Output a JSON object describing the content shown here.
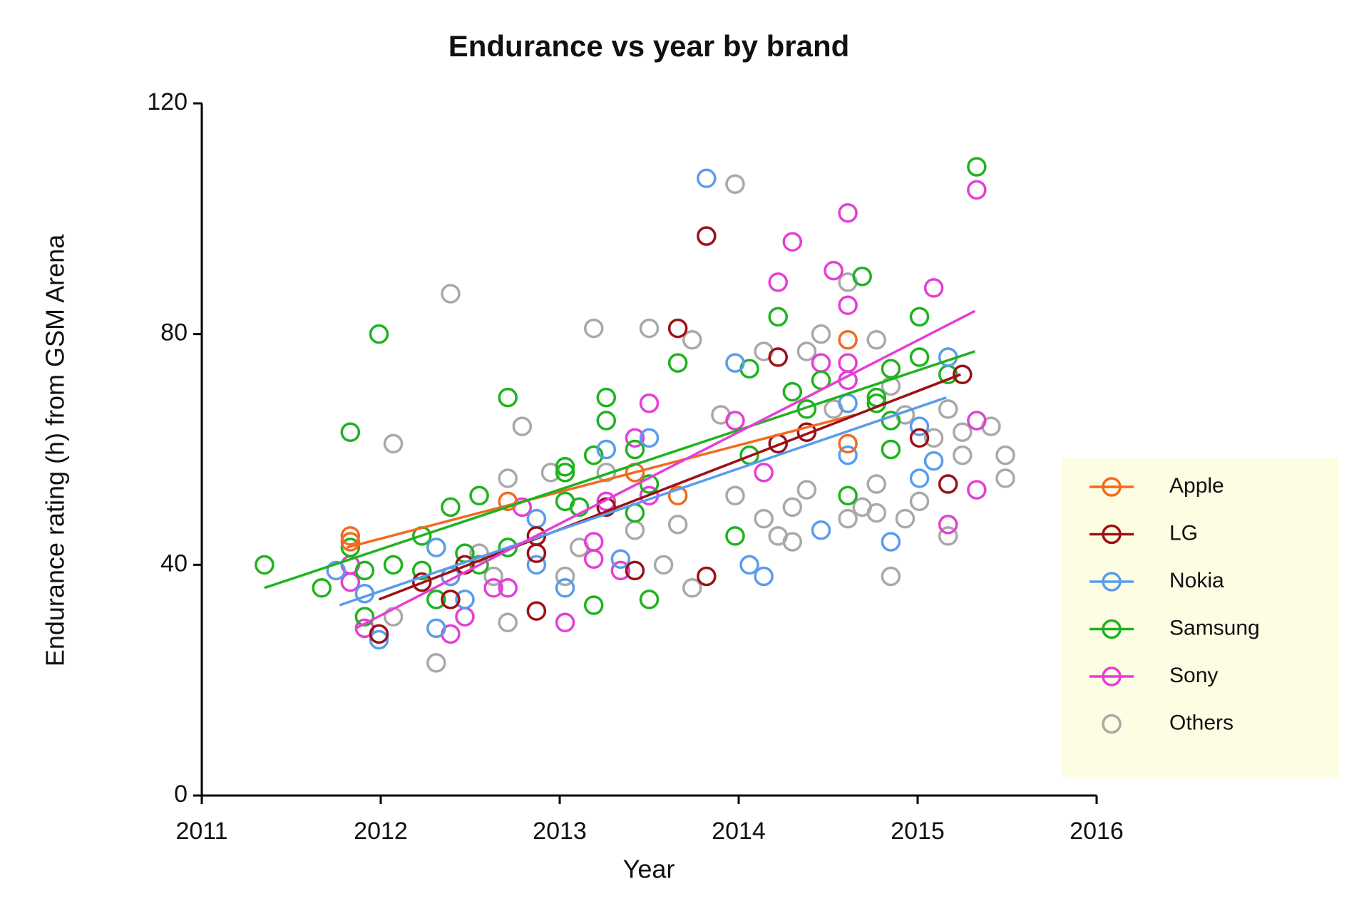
{
  "chart_data": {
    "type": "scatter",
    "title": "Endurance vs year by brand",
    "x_label": "Year",
    "y_label": "Endurance rating (h) from GSM Arena",
    "xlim": [
      2011,
      2016
    ],
    "xticks": [
      2011,
      2012,
      2013,
      2014,
      2015,
      2016
    ],
    "ylim": [
      0,
      120
    ],
    "yticks": [
      0,
      40,
      80,
      120
    ],
    "legend": "right",
    "series": [
      {
        "name": "Apple",
        "color": "#f26a21",
        "x": [
          2011.83,
          2011.83,
          2012.71,
          2013.42,
          2013.66,
          2014.61,
          2014.61
        ],
        "values": [
          45,
          44,
          51,
          56,
          52,
          79,
          61
        ],
        "trend": {
          "x": [
            2011.81,
            2014.65
          ],
          "values": [
            43,
            66
          ]
        }
      },
      {
        "name": "LG",
        "color": "#9b1116",
        "x": [
          2011.99,
          2012.39,
          2012.23,
          2012.47,
          2012.87,
          2012.87,
          2012.87,
          2013.26,
          2013.42,
          2013.66,
          2013.82,
          2013.82,
          2014.22,
          2014.22,
          2014.38,
          2015.01,
          2015.17,
          2015.25
        ],
        "values": [
          28,
          34,
          37,
          40,
          32,
          42,
          45,
          50,
          39,
          81,
          97,
          38,
          76,
          61,
          63,
          62,
          54,
          73
        ],
        "trend": {
          "x": [
            2011.99,
            2015.24
          ],
          "values": [
            34,
            73
          ]
        }
      },
      {
        "name": "Nokia",
        "color": "#5a9cec",
        "x": [
          2011.75,
          2011.91,
          2011.99,
          2012.31,
          2012.31,
          2012.39,
          2012.47,
          2012.87,
          2012.87,
          2013.03,
          2013.26,
          2013.34,
          2013.5,
          2013.82,
          2013.98,
          2014.06,
          2014.14,
          2014.46,
          2014.61,
          2014.61,
          2014.85,
          2015.01,
          2015.01,
          2015.09,
          2015.17
        ],
        "values": [
          39,
          35,
          27,
          43,
          29,
          38,
          34,
          40,
          48,
          36,
          60,
          41,
          62,
          107,
          75,
          40,
          38,
          46,
          59,
          68,
          44,
          55,
          64,
          58,
          76
        ],
        "trend": {
          "x": [
            2011.77,
            2015.16
          ],
          "values": [
            33,
            69
          ]
        }
      },
      {
        "name": "Samsung",
        "color": "#1fb31f",
        "x": [
          2011.35,
          2011.67,
          2011.83,
          2011.83,
          2011.91,
          2011.91,
          2011.99,
          2012.07,
          2012.23,
          2012.23,
          2012.31,
          2012.39,
          2012.47,
          2012.55,
          2012.55,
          2012.71,
          2012.71,
          2013.03,
          2013.03,
          2013.03,
          2013.11,
          2013.19,
          2013.19,
          2013.26,
          2013.26,
          2013.42,
          2013.42,
          2013.5,
          2013.5,
          2013.66,
          2013.98,
          2014.06,
          2014.06,
          2014.22,
          2014.3,
          2014.38,
          2014.46,
          2014.61,
          2014.69,
          2014.77,
          2014.77,
          2014.85,
          2014.85,
          2014.85,
          2015.01,
          2015.01,
          2015.17,
          2015.33
        ],
        "values": [
          40,
          36,
          63,
          43,
          39,
          31,
          80,
          40,
          45,
          39,
          34,
          50,
          42,
          52,
          40,
          69,
          43,
          57,
          56,
          51,
          50,
          59,
          33,
          69,
          65,
          60,
          49,
          54,
          34,
          75,
          45,
          59,
          74,
          83,
          70,
          67,
          72,
          52,
          90,
          69,
          68,
          74,
          65,
          60,
          83,
          76,
          73,
          109
        ],
        "trend": {
          "x": [
            2011.35,
            2015.32
          ],
          "values": [
            36,
            77
          ]
        }
      },
      {
        "name": "Sony",
        "color": "#e43fd6",
        "x": [
          2011.83,
          2011.83,
          2011.91,
          2012.39,
          2012.47,
          2012.63,
          2012.71,
          2012.79,
          2013.03,
          2013.19,
          2013.19,
          2013.26,
          2013.34,
          2013.42,
          2013.5,
          2013.5,
          2013.98,
          2014.14,
          2014.22,
          2014.3,
          2014.46,
          2014.53,
          2014.61,
          2014.61,
          2014.61,
          2014.61,
          2015.09,
          2015.17,
          2015.33,
          2015.33,
          2015.33
        ],
        "values": [
          40,
          37,
          29,
          28,
          31,
          36,
          36,
          50,
          30,
          41,
          44,
          51,
          39,
          62,
          68,
          52,
          65,
          56,
          89,
          96,
          75,
          91,
          101,
          85,
          75,
          72,
          88,
          47,
          105,
          65,
          53
        ],
        "trend": {
          "x": [
            2011.86,
            2015.32
          ],
          "values": [
            29,
            84
          ]
        }
      },
      {
        "name": "Others",
        "color": "#a9a9a9",
        "x": [
          2012.07,
          2012.07,
          2012.31,
          2012.39,
          2012.55,
          2012.63,
          2012.71,
          2012.71,
          2012.79,
          2012.95,
          2013.03,
          2013.11,
          2013.19,
          2013.26,
          2013.42,
          2013.5,
          2013.58,
          2013.66,
          2013.74,
          2013.74,
          2013.9,
          2013.98,
          2013.98,
          2014.14,
          2014.14,
          2014.22,
          2014.3,
          2014.3,
          2014.38,
          2014.38,
          2014.46,
          2014.53,
          2014.61,
          2014.61,
          2014.69,
          2014.77,
          2014.77,
          2014.77,
          2014.85,
          2014.85,
          2014.93,
          2014.93,
          2015.01,
          2015.09,
          2015.17,
          2015.17,
          2015.25,
          2015.25,
          2015.41,
          2015.49,
          2015.49
        ],
        "values": [
          61,
          31,
          23,
          87,
          42,
          38,
          55,
          30,
          64,
          56,
          38,
          43,
          81,
          56,
          46,
          81,
          40,
          47,
          79,
          36,
          66,
          106,
          52,
          48,
          77,
          45,
          44,
          50,
          77,
          53,
          80,
          67,
          89,
          48,
          50,
          79,
          54,
          49,
          38,
          71,
          48,
          66,
          51,
          62,
          45,
          67,
          59,
          63,
          64,
          59,
          55
        ]
      }
    ]
  }
}
